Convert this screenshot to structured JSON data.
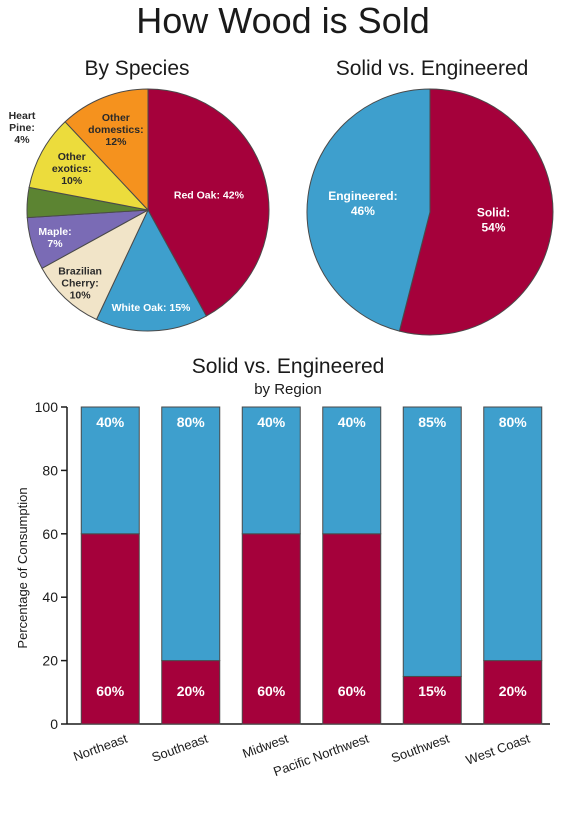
{
  "title": "How Wood is Sold",
  "colors": {
    "solid": "#a5013b",
    "engineered": "#3e9fcd",
    "red_oak": "#a5013b",
    "white_oak": "#3e9fcd",
    "brazilian_cherry": "#f1e4c8",
    "maple": "#7a6bb5",
    "heart_pine": "#5c8432",
    "other_exotics": "#ecdc3c",
    "other_domestics": "#f5921e",
    "outline": "#4a4a4a"
  },
  "chart_data": [
    {
      "type": "pie",
      "title": "By Species",
      "slices": [
        {
          "key": "red_oak",
          "lines": [
            "Red Oak: 42%"
          ],
          "value": 42
        },
        {
          "key": "white_oak",
          "lines": [
            "White Oak: 15%"
          ],
          "value": 15
        },
        {
          "key": "brazilian_cherry",
          "lines": [
            "Brazilian",
            "Cherry:",
            "10%"
          ],
          "value": 10
        },
        {
          "key": "maple",
          "lines": [
            "Maple:",
            "7%"
          ],
          "value": 7
        },
        {
          "key": "heart_pine",
          "lines": [
            "Heart",
            "Pine:",
            "4%"
          ],
          "value": 4
        },
        {
          "key": "other_exotics",
          "lines": [
            "Other",
            "exotics:",
            "10%"
          ],
          "value": 10
        },
        {
          "key": "other_domestics",
          "lines": [
            "Other",
            "domestics:",
            "12%"
          ],
          "value": 12
        }
      ]
    },
    {
      "type": "pie",
      "title": "Solid vs. Engineered",
      "slices": [
        {
          "key": "solid",
          "lines": [
            "Solid:",
            "54%"
          ],
          "value": 54
        },
        {
          "key": "engineered",
          "lines": [
            "Engineered:",
            "46%"
          ],
          "value": 46
        }
      ]
    },
    {
      "type": "bar",
      "stacked": true,
      "title": "Solid vs. Engineered",
      "subtitle": "by Region",
      "ylabel": "Percentage of Consumption",
      "ylim": [
        0,
        100
      ],
      "yticks": [
        0,
        20,
        40,
        60,
        80,
        100
      ],
      "categories": [
        "Northeast",
        "Southeast",
        "Midwest",
        "Pacific Northwest",
        "Southwest",
        "West Coast"
      ],
      "series": [
        {
          "key": "solid",
          "values": [
            60,
            20,
            60,
            60,
            15,
            20
          ],
          "labels": [
            "60%",
            "20%",
            "60%",
            "60%",
            "15%",
            "20%"
          ]
        },
        {
          "key": "engineered",
          "values": [
            40,
            80,
            40,
            40,
            85,
            80
          ],
          "labels": [
            "40%",
            "80%",
            "40%",
            "40%",
            "85%",
            "80%"
          ]
        }
      ]
    }
  ]
}
